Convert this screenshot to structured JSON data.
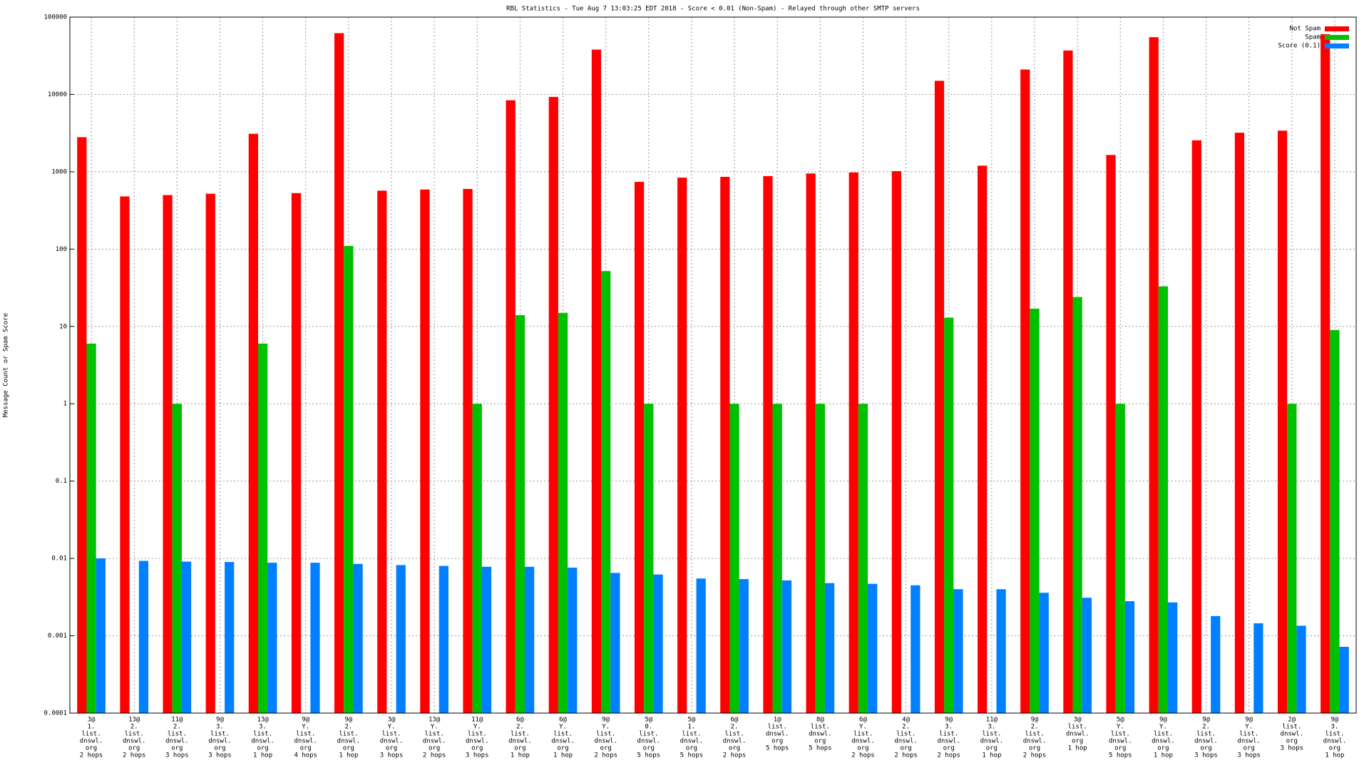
{
  "chart_data": {
    "type": "bar",
    "title": "RBL Statistics - Tue Aug  7 13:03:25 EDT 2018 - Score < 0.01 (Non-Spam) - Relayed through other SMTP servers",
    "y_label": "Message Count or Spam Score",
    "log_scale": true,
    "grid": true,
    "legend_position": "top-right",
    "categories": [
      [
        "3@",
        "1.",
        "list.",
        "dnswl.",
        "org",
        "2 hops"
      ],
      [
        "13@",
        "2.",
        "list.",
        "dnswl.",
        "org",
        "2 hops"
      ],
      [
        "11@",
        "2.",
        "list.",
        "dnswl.",
        "org",
        "3 hops"
      ],
      [
        "9@",
        "3.",
        "list.",
        "dnswl.",
        "org",
        "3 hops"
      ],
      [
        "13@",
        "3.",
        "list.",
        "dnswl.",
        "org",
        "1 hop"
      ],
      [
        "9@",
        "Y.",
        "list.",
        "dnswl.",
        "org",
        "4 hops"
      ],
      [
        "9@",
        "2.",
        "list.",
        "dnswl.",
        "org",
        "1 hop"
      ],
      [
        "3@",
        "Y.",
        "list.",
        "dnswl.",
        "org",
        "3 hops"
      ],
      [
        "13@",
        "Y.",
        "list.",
        "dnswl.",
        "org",
        "2 hops"
      ],
      [
        "11@",
        "Y.",
        "list.",
        "dnswl.",
        "org",
        "3 hops"
      ],
      [
        "6@",
        "2.",
        "list.",
        "dnswl.",
        "org",
        "1 hop"
      ],
      [
        "6@",
        "Y.",
        "list.",
        "dnswl.",
        "org",
        "1 hop"
      ],
      [
        "9@",
        "Y.",
        "list.",
        "dnswl.",
        "org",
        "2 hops"
      ],
      [
        "5@",
        "0.",
        "list.",
        "dnswl.",
        "org",
        "5 hops"
      ],
      [
        "5@",
        "1.",
        "list.",
        "dnswl.",
        "org",
        "5 hops"
      ],
      [
        "6@",
        "2.",
        "list.",
        "dnswl.",
        "org",
        "2 hops"
      ],
      [
        "1@",
        "list.",
        "dnswl.",
        "org",
        "5 hops"
      ],
      [
        "8@",
        "list.",
        "dnswl.",
        "org",
        "5 hops"
      ],
      [
        "6@",
        "Y.",
        "list.",
        "dnswl.",
        "org",
        "2 hops"
      ],
      [
        "4@",
        "2.",
        "list.",
        "dnswl.",
        "org",
        "2 hops"
      ],
      [
        "9@",
        "3.",
        "list.",
        "dnswl.",
        "org",
        "2 hops"
      ],
      [
        "11@",
        "3.",
        "list.",
        "dnswl.",
        "org",
        "1 hop"
      ],
      [
        "9@",
        "2.",
        "list.",
        "dnswl.",
        "org",
        "2 hops"
      ],
      [
        "3@",
        "list.",
        "dnswl.",
        "org",
        "1 hop"
      ],
      [
        "5@",
        "Y.",
        "list.",
        "dnswl.",
        "org",
        "5 hops"
      ],
      [
        "9@",
        "Y.",
        "list.",
        "dnswl.",
        "org",
        "1 hop"
      ],
      [
        "9@",
        "2.",
        "list.",
        "dnswl.",
        "org",
        "3 hops"
      ],
      [
        "9@",
        "Y.",
        "list.",
        "dnswl.",
        "org",
        "3 hops"
      ],
      [
        "2@",
        "list.",
        "dnswl.",
        "org",
        "3 hops"
      ],
      [
        "9@",
        "3.",
        "list.",
        "dnswl.",
        "org",
        "1 hop"
      ]
    ],
    "series": [
      {
        "name": "Not Spam",
        "color": "#ff0000",
        "values": [
          2800,
          480,
          500,
          520,
          3100,
          530,
          62000,
          570,
          590,
          600,
          8400,
          9300,
          38000,
          740,
          840,
          860,
          880,
          950,
          980,
          1020,
          15000,
          1200,
          21000,
          37000,
          1650,
          55000,
          2550,
          3200,
          3400,
          60000
        ]
      },
      {
        "name": "Spam",
        "color": "#00c000",
        "values": [
          6,
          null,
          1,
          null,
          6,
          null,
          110,
          null,
          null,
          1,
          14,
          15,
          52,
          1,
          null,
          1,
          1,
          1,
          1,
          null,
          13,
          null,
          17,
          24,
          1,
          33,
          null,
          null,
          1,
          9
        ]
      },
      {
        "name": "Score (0.1)",
        "color": "#0080ff",
        "values": [
          0.01,
          0.0093,
          0.0091,
          0.009,
          0.0088,
          0.0088,
          0.0085,
          0.0082,
          0.008,
          0.0078,
          0.0078,
          0.0076,
          0.0065,
          0.0062,
          0.0055,
          0.0054,
          0.0052,
          0.0048,
          0.0047,
          0.0045,
          0.004,
          0.004,
          0.0036,
          0.0031,
          0.0028,
          0.0027,
          0.0018,
          0.00145,
          0.00135,
          0.00072
        ]
      }
    ],
    "ylim": [
      0.0001,
      100000
    ],
    "yticks": [
      0.0001,
      0.001,
      0.01,
      0.1,
      1,
      10,
      100,
      1000,
      10000,
      100000
    ]
  }
}
